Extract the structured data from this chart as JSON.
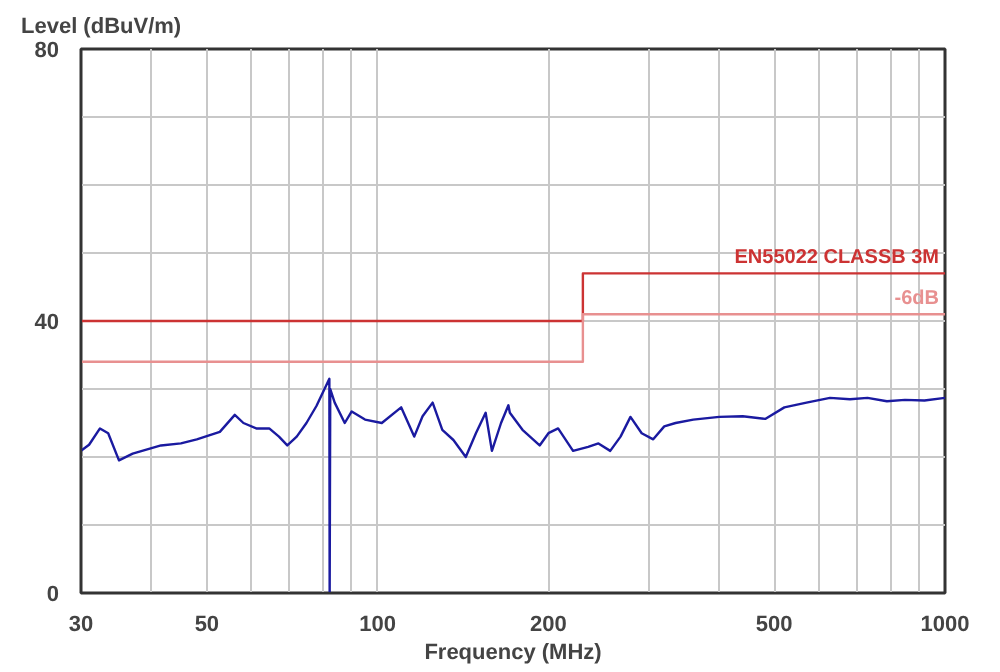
{
  "chart_data": {
    "type": "line",
    "xlabel": "Frequency (MHz)",
    "ylabel": "Level (dBuV/m)",
    "log": "x",
    "grid": true,
    "marker": "none",
    "line_style": "solid",
    "xlim": [
      30,
      1000
    ],
    "ylim": [
      0,
      80
    ],
    "xticks": [
      30,
      {
        "value": 40,
        "label": null
      },
      50,
      {
        "value": 60,
        "label": null
      },
      {
        "value": 70,
        "label": null
      },
      {
        "value": 80,
        "label": null
      },
      {
        "value": 90,
        "label": null
      },
      100,
      200,
      {
        "value": 300,
        "label": null
      },
      {
        "value": 400,
        "label": null
      },
      500,
      {
        "value": 600,
        "label": null
      },
      {
        "value": 700,
        "label": null
      },
      {
        "value": 800,
        "label": null
      },
      {
        "value": 900,
        "label": null
      },
      1000
    ],
    "yticks": [
      0,
      {
        "value": 10,
        "label": null
      },
      {
        "value": 20,
        "label": null
      },
      {
        "value": 30,
        "label": null
      },
      40,
      {
        "value": 50,
        "label": null
      },
      {
        "value": 60,
        "label": null
      },
      {
        "value": 70,
        "label": null
      },
      80
    ],
    "series": [
      {
        "name": "EN55022 CLASSB 3M",
        "color": "#cc3333",
        "x": [
          30,
          230,
          230,
          1000
        ],
        "values": [
          40,
          40,
          47,
          47
        ]
      },
      {
        "name": "-6dB",
        "color": "#e89090",
        "x": [
          30,
          230,
          230,
          1000
        ],
        "values": [
          34,
          34,
          41,
          41
        ]
      },
      {
        "color": "#1a1aa0",
        "x": [
          30,
          31,
          32.4,
          33.5,
          35,
          37,
          41.5,
          45,
          48,
          52.7,
          56,
          58,
          61.1,
          64.4,
          67,
          69.3,
          72,
          74.9,
          78,
          82.2,
          82.3,
          82.5,
          84,
          87.5,
          90,
          95,
          101.7,
          110,
          116,
          120,
          125,
          130,
          136,
          143,
          149,
          155,
          159,
          165,
          170,
          171,
          180,
          193,
          200,
          208,
          221,
          235,
          245,
          257,
          268,
          279,
          292,
          306,
          320,
          335,
          360,
          400,
          440,
          482,
          521,
          570,
          627,
          680,
          730,
          790,
          850,
          920,
          1000
        ],
        "values": [
          20.9,
          21.8,
          24.2,
          23.5,
          19.5,
          20.5,
          21.7,
          22,
          22.6,
          23.7,
          26.2,
          25,
          24.2,
          24.2,
          23,
          21.7,
          23,
          25,
          27.5,
          31.5,
          0,
          30,
          28,
          25,
          26.7,
          25.5,
          25,
          27.3,
          23,
          26,
          28,
          24,
          22.5,
          20,
          23.5,
          26.5,
          20.9,
          25,
          27.6,
          26.5,
          24,
          21.7,
          23.5,
          24.2,
          20.9,
          21.5,
          22,
          20.9,
          23,
          25.9,
          23.5,
          22.6,
          24.5,
          25,
          25.5,
          25.9,
          26,
          25.6,
          27.3,
          28,
          28.7,
          28.5,
          28.7,
          28.2,
          28.4,
          28.3,
          28.7
        ]
      }
    ]
  }
}
